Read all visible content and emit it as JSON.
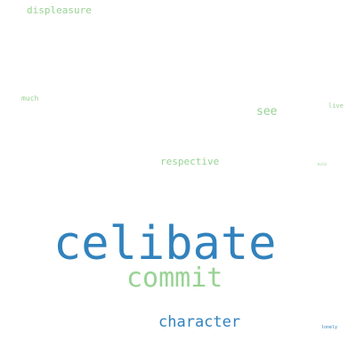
{
  "colors": {
    "background": "#ffffff",
    "blue": "#3182bd",
    "green": "#98d394"
  },
  "words": {
    "celibate": {
      "text": "celibate",
      "color": "#3182bd"
    },
    "commit": {
      "text": "commit",
      "color": "#98d394"
    },
    "character": {
      "text": "character",
      "color": "#3182bd"
    },
    "see": {
      "text": "see",
      "color": "#98d394"
    },
    "respective": {
      "text": "respective",
      "color": "#98d394"
    },
    "displeasure": {
      "text": "displeasure",
      "color": "#98d394"
    },
    "much": {
      "text": "much",
      "color": "#98d394"
    },
    "live": {
      "text": "live",
      "color": "#98d394"
    },
    "tiny1": {
      "text": "hold",
      "color": "#98d394"
    },
    "lonely": {
      "text": "lonely",
      "color": "#3182bd"
    }
  }
}
